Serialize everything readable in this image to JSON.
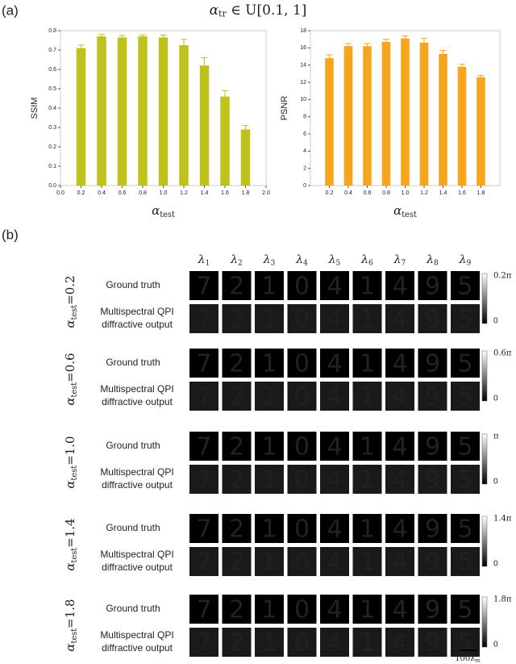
{
  "panel_a_label": "(a)",
  "panel_b_label": "(b)",
  "title": {
    "symbol": "α",
    "subscript": "tr",
    "rest": " ∈ U[0.1, 1]"
  },
  "chart_data": [
    {
      "type": "bar",
      "ylabel": "SSIM",
      "xlabel": {
        "symbol": "α",
        "subscript": "test"
      },
      "x": [
        0.2,
        0.4,
        0.6,
        0.8,
        1.0,
        1.2,
        1.4,
        1.6,
        1.8
      ],
      "values": [
        0.71,
        0.77,
        0.765,
        0.77,
        0.765,
        0.725,
        0.62,
        0.46,
        0.29
      ],
      "errors": [
        0.015,
        0.01,
        0.01,
        0.008,
        0.012,
        0.03,
        0.04,
        0.03,
        0.02
      ],
      "color": "#bfc21a",
      "xlim": [
        0,
        2
      ],
      "xticks": [
        {
          "value": 0,
          "label": "0.0"
        },
        0.2,
        0.4,
        0.6,
        0.8,
        {
          "value": 1,
          "label": "1.0"
        },
        1.2,
        1.4,
        1.6,
        1.8,
        {
          "value": 2,
          "label": "2.0"
        }
      ],
      "ylim": [
        0,
        0.8
      ],
      "yticks": [
        {
          "value": 0,
          "label": "0.0"
        },
        0.1,
        0.2,
        0.3,
        0.4,
        0.5,
        0.6,
        0.7,
        0.8
      ]
    },
    {
      "type": "bar",
      "ylabel": "PSNR",
      "xlabel": {
        "symbol": "α",
        "subscript": "test"
      },
      "x": [
        0.2,
        0.4,
        0.6,
        0.8,
        1.0,
        1.2,
        1.4,
        1.6,
        1.8
      ],
      "values": [
        14.8,
        16.2,
        16.2,
        16.7,
        17.1,
        16.6,
        15.3,
        13.8,
        12.6
      ],
      "errors": [
        0.4,
        0.3,
        0.3,
        0.3,
        0.3,
        0.5,
        0.4,
        0.3,
        0.2
      ],
      "color": "#f7a51c",
      "xlim": [
        0,
        2
      ],
      "xticks": [
        0.2,
        0.4,
        0.6,
        0.8,
        {
          "value": 1,
          "label": "1.0"
        },
        1.2,
        1.4,
        1.6,
        1.8
      ],
      "ylim": [
        0,
        18
      ],
      "yticks": [
        0,
        2,
        4,
        6,
        8,
        10,
        12,
        14,
        16,
        18
      ]
    }
  ],
  "wavelengths": {
    "symbol": "λ",
    "subscripts": [
      "1",
      "2",
      "3",
      "4",
      "5",
      "6",
      "7",
      "8",
      "9"
    ]
  },
  "digits": [
    "7",
    "2",
    "1",
    "0",
    "4",
    "1",
    "4",
    "9",
    "5"
  ],
  "row_labels": {
    "ground_truth": "Ground truth",
    "output": [
      "Multispectral QPI",
      "diffractive output"
    ]
  },
  "groups": [
    {
      "symbol": "α",
      "subscript": "test",
      "value": "=0.2",
      "colorbar_max": "0.2π",
      "colorbar_min": "0"
    },
    {
      "symbol": "α",
      "subscript": "test",
      "value": "=0.6",
      "colorbar_max": "0.6π",
      "colorbar_min": "0"
    },
    {
      "symbol": "α",
      "subscript": "test",
      "value": "=1.0",
      "colorbar_max": "π",
      "colorbar_min": "0"
    },
    {
      "symbol": "α",
      "subscript": "test",
      "value": "=1.4",
      "colorbar_max": "1.4π",
      "colorbar_min": "0"
    },
    {
      "symbol": "α",
      "subscript": "test",
      "value": "=1.8",
      "colorbar_max": "1.8π",
      "colorbar_min": "0"
    }
  ],
  "scale_bar": {
    "text": "100λ",
    "subscript": "m"
  }
}
